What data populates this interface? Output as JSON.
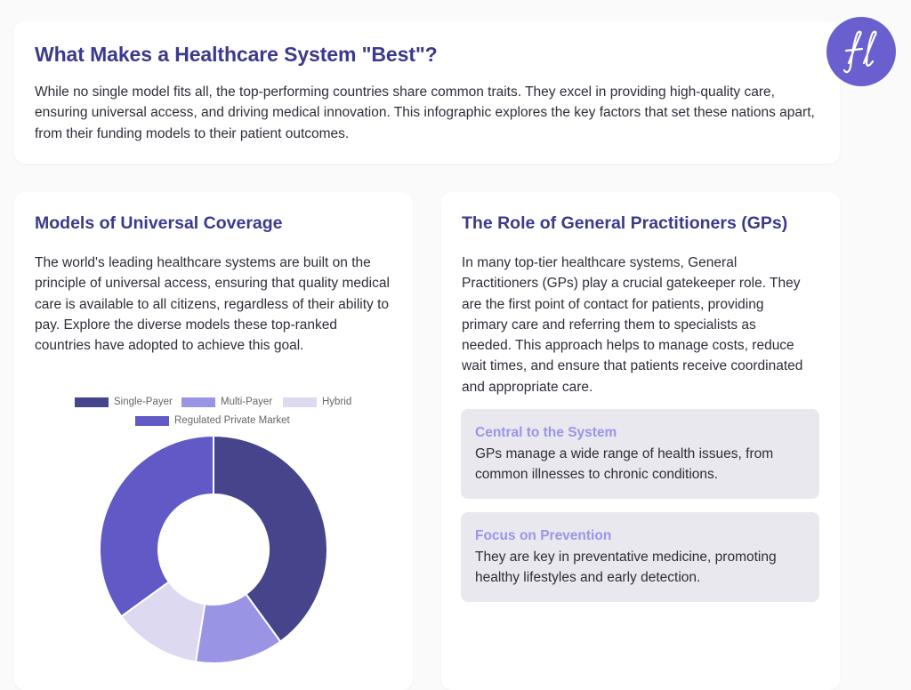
{
  "intro": {
    "title": "What Makes a Healthcare System \"Best\"?",
    "text": "While no single model fits all, the top-performing countries share common traits. They excel in providing high-quality care, ensuring universal access, and driving medical innovation. This infographic explores the key factors that set these nations apart, from their funding models to their patient outcomes."
  },
  "coverage": {
    "title": "Models of Universal Coverage",
    "text": "The world's leading healthcare systems are built on the principle of universal access, ensuring that quality medical care is available to all citizens, regardless of their ability to pay. Explore the diverse models these top-ranked countries have adopted to achieve this goal."
  },
  "chart_data": {
    "type": "pie",
    "donut": true,
    "categories": [
      "Single-Payer",
      "Multi-Payer",
      "Hybrid",
      "Regulated Private Market"
    ],
    "values": [
      40,
      12.5,
      12.5,
      35
    ],
    "colors": [
      "#46458c",
      "#9a94e4",
      "#dcd9f1",
      "#6159c5"
    ],
    "legend": "top"
  },
  "gp": {
    "title": "The Role of General Practitioners (GPs)",
    "text": "In many top-tier healthcare systems, General Practitioners (GPs) play a crucial gatekeeper role. They are the first point of contact for patients, providing primary care and referring them to specialists as needed. This approach helps to manage costs, reduce wait times, and ensure that patients receive coordinated and appropriate care.",
    "boxes": [
      {
        "title": "Central to the System",
        "text": "GPs manage a wide range of health issues, from common illnesses to chronic conditions."
      },
      {
        "title": "Focus on Prevention",
        "text": "They are key in preventative medicine, promoting healthy lifestyles and early detection."
      }
    ]
  },
  "colors": {
    "heading": "#3b3a8c",
    "box_title": "#9b95e6",
    "box_bg": "#e8e8ee",
    "logo_bg": "#6a5fce"
  }
}
